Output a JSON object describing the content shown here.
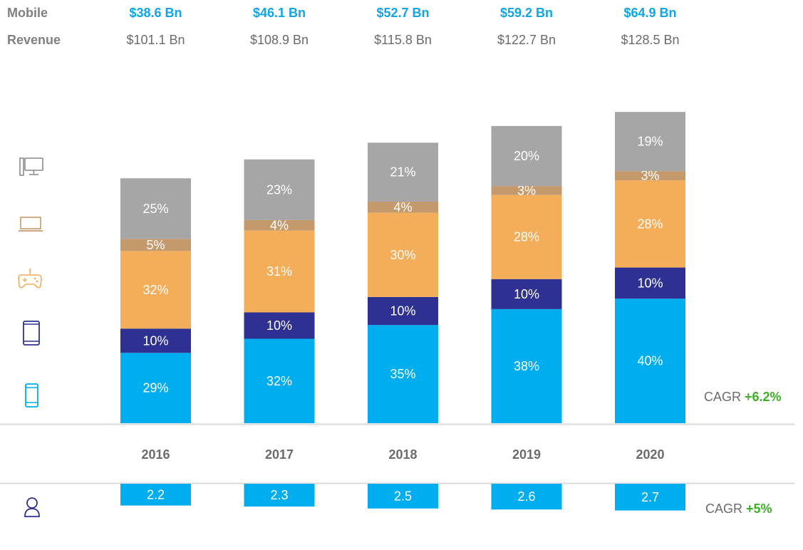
{
  "header": {
    "mobile_label": "Mobile",
    "revenue_label": "Revenue"
  },
  "icons": [
    "desktop-icon",
    "laptop-icon",
    "gamepad-icon",
    "tablet-icon",
    "phone-icon",
    "user-icon"
  ],
  "colors": {
    "pc": "#a7a6a6",
    "laptop": "#c49a6c",
    "console": "#f4ae5a",
    "tablet": "#2e3192",
    "smartphone": "#00adee",
    "users": "#00adee",
    "icon_gray": "#8a8a8a",
    "icon_brown": "#c49a6c",
    "icon_orange": "#f4ae5a",
    "icon_navy": "#2e3192",
    "icon_blue": "#00adee",
    "cagr_green": "#3fae2a"
  },
  "chart_data": {
    "type": "bar",
    "stacked": true,
    "categories": [
      "2016",
      "2017",
      "2018",
      "2019",
      "2020"
    ],
    "mobile_revenue": [
      "$38.6 Bn",
      "$46.1 Bn",
      "$52.7 Bn",
      "$59.2 Bn",
      "$64.9 Bn"
    ],
    "total_revenue": [
      "$101.1 Bn",
      "$108.9 Bn",
      "$115.8 Bn",
      "$122.7 Bn",
      "$128.5 Bn"
    ],
    "total_revenue_values": [
      101.1,
      108.9,
      115.8,
      122.7,
      128.5
    ],
    "series": [
      {
        "key": "smartphone",
        "values": [
          29,
          32,
          35,
          38,
          40
        ],
        "labels": [
          "29%",
          "32%",
          "35%",
          "38%",
          "40%"
        ],
        "text_color": "#ffffff"
      },
      {
        "key": "tablet",
        "values": [
          10,
          10,
          10,
          10,
          10
        ],
        "labels": [
          "10%",
          "10%",
          "10%",
          "10%",
          "10%"
        ],
        "text_color": "#ffffff"
      },
      {
        "key": "console",
        "values": [
          32,
          31,
          30,
          28,
          28
        ],
        "labels": [
          "32%",
          "31%",
          "30%",
          "28%",
          "28%"
        ],
        "text_color": "#ffffff"
      },
      {
        "key": "laptop",
        "values": [
          5,
          4,
          4,
          3,
          3
        ],
        "labels": [
          "5%",
          "4%",
          "4%",
          "3%",
          "3%"
        ],
        "text_color": "#ffffff"
      },
      {
        "key": "pc",
        "values": [
          25,
          23,
          21,
          20,
          19
        ],
        "labels": [
          "25%",
          "23%",
          "21%",
          "20%",
          "19%"
        ],
        "text_color": "#ffffff"
      }
    ],
    "revenue_cagr": {
      "prefix": "CAGR ",
      "value": "+6.2%"
    },
    "users": {
      "values": [
        2.2,
        2.3,
        2.5,
        2.6,
        2.7
      ],
      "labels": [
        "2.2",
        "2.3",
        "2.5",
        "2.6",
        "2.7"
      ],
      "cagr": {
        "prefix": "CAGR ",
        "value": "+5%"
      }
    }
  }
}
